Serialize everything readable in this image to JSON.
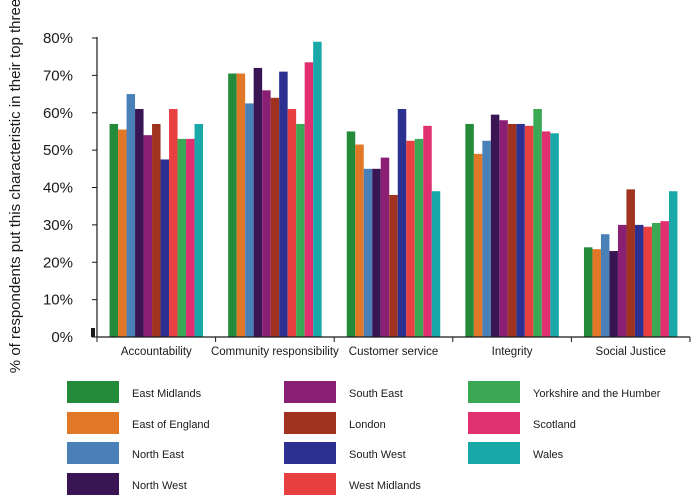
{
  "chart_data": {
    "type": "bar",
    "ylabel": "% of respondents put this characteristic in their top three",
    "xlabel": "",
    "ylim": [
      0,
      80
    ],
    "yticks": [
      {
        "value": 0,
        "label": "0%"
      },
      {
        "value": 10,
        "label": "10%"
      },
      {
        "value": 20,
        "label": "20%"
      },
      {
        "value": 30,
        "label": "30%"
      },
      {
        "value": 40,
        "label": "40%"
      },
      {
        "value": 50,
        "label": "50%"
      },
      {
        "value": 60,
        "label": "60%"
      },
      {
        "value": 70,
        "label": "70%"
      },
      {
        "value": 80,
        "label": "80%"
      }
    ],
    "grid": false,
    "legend_position": "bottom",
    "categories": [
      "Accountability",
      "Community responsibility",
      "Customer service",
      "Integrity",
      "Social Justice"
    ],
    "series": [
      {
        "name": "East Midlands",
        "color": "#238b3a",
        "values": [
          57,
          70.5,
          55,
          57,
          24
        ]
      },
      {
        "name": "East of England",
        "color": "#e07828",
        "values": [
          55.5,
          70.5,
          51.5,
          49,
          23.5
        ]
      },
      {
        "name": "North East",
        "color": "#4a80b8",
        "values": [
          65,
          62.5,
          45,
          52.5,
          27.5
        ]
      },
      {
        "name": "North West",
        "color": "#3a1554",
        "values": [
          61,
          72,
          45,
          59.5,
          23
        ]
      },
      {
        "name": "South East",
        "color": "#8b1f74",
        "values": [
          54,
          66,
          48,
          58,
          30
        ]
      },
      {
        "name": "London",
        "color": "#a03320",
        "values": [
          57,
          64,
          38,
          57,
          39.5
        ]
      },
      {
        "name": "South West",
        "color": "#2c3090",
        "values": [
          47.5,
          71,
          61,
          57,
          30
        ]
      },
      {
        "name": "West Midlands",
        "color": "#e84040",
        "values": [
          61,
          61,
          52.5,
          56.5,
          29.5
        ]
      },
      {
        "name": "Yorkshire and the Humber",
        "color": "#3aa855",
        "values": [
          53,
          57,
          53,
          61,
          30.5
        ]
      },
      {
        "name": "Scotland",
        "color": "#e03070",
        "values": [
          53,
          73.5,
          56.5,
          55,
          31
        ]
      },
      {
        "name": "Wales",
        "color": "#18a8a8",
        "values": [
          57,
          79,
          39,
          54.5,
          39
        ]
      }
    ]
  }
}
